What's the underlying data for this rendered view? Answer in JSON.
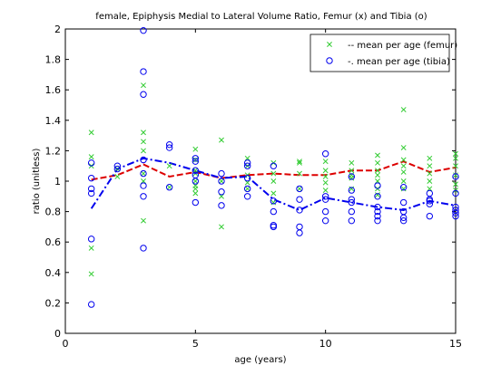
{
  "chart_data": {
    "type": "scatter",
    "title": "female, Epiphysis Medial to Lateral Volume Ratio, Femur (x) and Tibia (o)",
    "xlabel": "age (years)",
    "ylabel": "ratio (unitless)",
    "xlim": [
      0,
      15
    ],
    "ylim": [
      0,
      2
    ],
    "xticks": [
      "0",
      "5",
      "10",
      "15"
    ],
    "yticks": [
      "0",
      "0.2",
      "0.4",
      "0.6",
      "0.8",
      "1",
      "1.2",
      "1.4",
      "1.6",
      "1.8",
      "2"
    ],
    "grid": false,
    "legend_position": "top-right",
    "series": [
      {
        "name": "-- mean per age (femur)",
        "marker": "x",
        "color": "#33cc33",
        "points": [
          [
            1,
            1.32
          ],
          [
            1,
            1.16
          ],
          [
            1,
            1.1
          ],
          [
            1,
            0.56
          ],
          [
            1,
            0.39
          ],
          [
            2,
            1.03
          ],
          [
            2,
            1.08
          ],
          [
            3,
            1.63
          ],
          [
            3,
            1.32
          ],
          [
            3,
            1.26
          ],
          [
            3,
            1.2
          ],
          [
            3,
            1.05
          ],
          [
            3,
            1.0
          ],
          [
            3,
            0.74
          ],
          [
            4,
            1.1
          ],
          [
            4,
            0.96
          ],
          [
            5,
            1.21
          ],
          [
            5,
            1.14
          ],
          [
            5,
            1.07
          ],
          [
            5,
            1.05
          ],
          [
            5,
            1.0
          ],
          [
            5,
            0.97
          ],
          [
            5,
            0.95
          ],
          [
            5,
            0.92
          ],
          [
            6,
            1.27
          ],
          [
            6,
            1.0
          ],
          [
            6,
            0.9
          ],
          [
            6,
            0.7
          ],
          [
            7,
            1.15
          ],
          [
            7,
            1.1
          ],
          [
            7,
            1.04
          ],
          [
            7,
            0.99
          ],
          [
            7,
            0.95
          ],
          [
            8,
            1.12
          ],
          [
            8,
            1.05
          ],
          [
            8,
            1.0
          ],
          [
            8,
            0.92
          ],
          [
            8,
            0.86
          ],
          [
            9,
            1.13
          ],
          [
            9,
            1.12
          ],
          [
            9,
            1.05
          ],
          [
            9,
            0.95
          ],
          [
            10,
            1.13
          ],
          [
            10,
            1.07
          ],
          [
            10,
            1.03
          ],
          [
            10,
            0.99
          ],
          [
            10,
            0.94
          ],
          [
            11,
            1.12
          ],
          [
            11,
            1.07
          ],
          [
            11,
            1.04
          ],
          [
            11,
            1.02
          ],
          [
            11,
            0.95
          ],
          [
            12,
            1.17
          ],
          [
            12,
            1.12
          ],
          [
            12,
            1.07
          ],
          [
            12,
            1.04
          ],
          [
            12,
            1.0
          ],
          [
            12,
            0.95
          ],
          [
            12,
            0.91
          ],
          [
            13,
            1.47
          ],
          [
            13,
            1.22
          ],
          [
            13,
            1.14
          ],
          [
            13,
            1.1
          ],
          [
            13,
            1.06
          ],
          [
            13,
            1.0
          ],
          [
            13,
            0.95
          ],
          [
            14,
            1.15
          ],
          [
            14,
            1.1
          ],
          [
            14,
            1.05
          ],
          [
            14,
            1.0
          ],
          [
            14,
            0.95
          ],
          [
            15,
            1.18
          ],
          [
            15,
            1.15
          ],
          [
            15,
            1.1
          ],
          [
            15,
            1.04
          ],
          [
            15,
            0.98
          ],
          [
            15,
            0.94
          ]
        ],
        "mean": {
          "style": "dashed",
          "color": "#dd0000",
          "x": [
            1,
            2,
            3,
            4,
            5,
            6,
            7,
            8,
            9,
            10,
            11,
            12,
            13,
            14,
            15
          ],
          "y": [
            1.01,
            1.04,
            1.11,
            1.03,
            1.06,
            1.02,
            1.04,
            1.05,
            1.04,
            1.04,
            1.07,
            1.07,
            1.13,
            1.06,
            1.09
          ]
        }
      },
      {
        "name": "-. mean per age (tibia)",
        "marker": "o",
        "color": "#0000ee",
        "points": [
          [
            1,
            1.12
          ],
          [
            1,
            1.02
          ],
          [
            1,
            0.95
          ],
          [
            1,
            0.92
          ],
          [
            1,
            0.62
          ],
          [
            1,
            0.19
          ],
          [
            2,
            1.1
          ],
          [
            2,
            1.08
          ],
          [
            3,
            1.99
          ],
          [
            3,
            1.72
          ],
          [
            3,
            1.57
          ],
          [
            3,
            1.14
          ],
          [
            3,
            1.05
          ],
          [
            3,
            0.97
          ],
          [
            3,
            0.9
          ],
          [
            3,
            0.56
          ],
          [
            4,
            1.24
          ],
          [
            4,
            1.22
          ],
          [
            4,
            0.96
          ],
          [
            5,
            1.15
          ],
          [
            5,
            1.13
          ],
          [
            5,
            1.07
          ],
          [
            5,
            1.04
          ],
          [
            5,
            1.0
          ],
          [
            5,
            0.86
          ],
          [
            6,
            1.05
          ],
          [
            6,
            1.0
          ],
          [
            6,
            0.93
          ],
          [
            6,
            0.84
          ],
          [
            7,
            1.12
          ],
          [
            7,
            1.1
          ],
          [
            7,
            1.02
          ],
          [
            7,
            0.95
          ],
          [
            7,
            0.9
          ],
          [
            8,
            1.1
          ],
          [
            8,
            0.87
          ],
          [
            8,
            0.8
          ],
          [
            8,
            0.71
          ],
          [
            8,
            0.7
          ],
          [
            9,
            0.95
          ],
          [
            9,
            0.88
          ],
          [
            9,
            0.81
          ],
          [
            9,
            0.7
          ],
          [
            9,
            0.66
          ],
          [
            10,
            1.18
          ],
          [
            10,
            0.9
          ],
          [
            10,
            0.88
          ],
          [
            10,
            0.8
          ],
          [
            10,
            0.74
          ],
          [
            11,
            1.03
          ],
          [
            11,
            0.94
          ],
          [
            11,
            0.88
          ],
          [
            11,
            0.86
          ],
          [
            11,
            0.8
          ],
          [
            11,
            0.74
          ],
          [
            12,
            0.97
          ],
          [
            12,
            0.9
          ],
          [
            12,
            0.83
          ],
          [
            12,
            0.8
          ],
          [
            12,
            0.77
          ],
          [
            12,
            0.74
          ],
          [
            13,
            0.96
          ],
          [
            13,
            0.86
          ],
          [
            13,
            0.8
          ],
          [
            13,
            0.76
          ],
          [
            13,
            0.74
          ],
          [
            14,
            0.92
          ],
          [
            14,
            0.88
          ],
          [
            14,
            0.87
          ],
          [
            14,
            0.85
          ],
          [
            14,
            0.77
          ],
          [
            15,
            1.03
          ],
          [
            15,
            0.92
          ],
          [
            15,
            0.83
          ],
          [
            15,
            0.81
          ],
          [
            15,
            0.79
          ],
          [
            15,
            0.77
          ]
        ],
        "mean": {
          "style": "dashdot",
          "color": "#0000ee",
          "x": [
            1,
            2,
            3,
            4,
            5,
            6,
            7,
            8,
            9,
            10,
            11,
            12,
            13,
            14,
            15
          ],
          "y": [
            0.82,
            1.08,
            1.15,
            1.12,
            1.07,
            1.02,
            1.03,
            0.88,
            0.81,
            0.89,
            0.86,
            0.83,
            0.81,
            0.87,
            0.84
          ]
        }
      }
    ]
  }
}
